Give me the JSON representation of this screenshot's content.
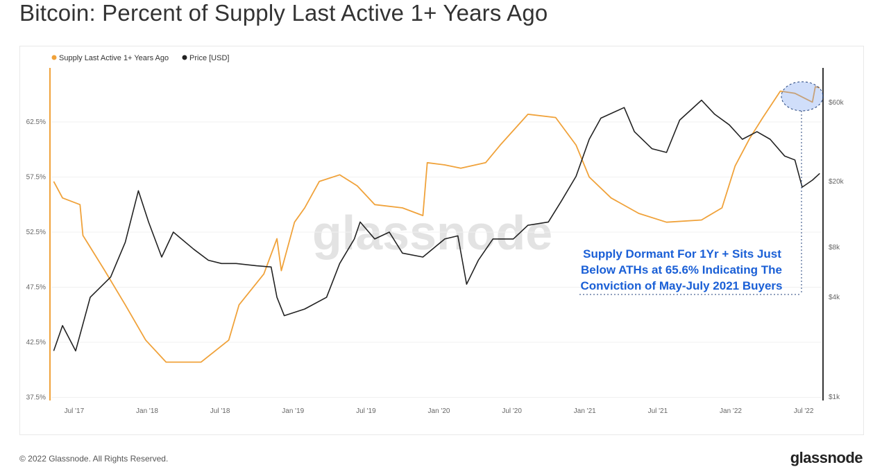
{
  "title": "Bitcoin: Percent of Supply Last Active 1+ Years Ago",
  "footer": {
    "copyright": "© 2022 Glassnode. All Rights Reserved.",
    "logo": "glassnode"
  },
  "watermark": "glassnode",
  "chart_data": {
    "type": "line",
    "title": "Bitcoin: Percent of Supply Last Active 1+ Years Ago",
    "legend_position": "top-left",
    "x_ticks": [
      {
        "t": 2017.5,
        "label": "Jul '17"
      },
      {
        "t": 2018.0,
        "label": "Jan '18"
      },
      {
        "t": 2018.5,
        "label": "Jul '18"
      },
      {
        "t": 2019.0,
        "label": "Jan '19"
      },
      {
        "t": 2019.5,
        "label": "Jul '19"
      },
      {
        "t": 2020.0,
        "label": "Jan '20"
      },
      {
        "t": 2020.5,
        "label": "Jul '20"
      },
      {
        "t": 2021.0,
        "label": "Jan '21"
      },
      {
        "t": 2021.5,
        "label": "Jul '21"
      },
      {
        "t": 2022.0,
        "label": "Jan '22"
      },
      {
        "t": 2022.5,
        "label": "Jul '22"
      }
    ],
    "xlim": [
      2017.33,
      2022.65
    ],
    "y_left": {
      "ticks": [
        {
          "v": 37.5,
          "label": "37.5%"
        },
        {
          "v": 42.5,
          "label": "42.5%"
        },
        {
          "v": 47.5,
          "label": "47.5%"
        },
        {
          "v": 52.5,
          "label": "52.5%"
        },
        {
          "v": 57.5,
          "label": "57.5%"
        },
        {
          "v": 62.5,
          "label": "62.5%"
        }
      ],
      "ylim": [
        37.5,
        67.4
      ]
    },
    "y_right": {
      "scale": "log",
      "ticks": [
        {
          "v": 1000,
          "label": "$1k"
        },
        {
          "v": 4000,
          "label": "$4k"
        },
        {
          "v": 8000,
          "label": "$8k"
        },
        {
          "v": 20000,
          "label": "$20k"
        },
        {
          "v": 60000,
          "label": "$60k"
        }
      ],
      "ylim": [
        1000,
        130000
      ]
    },
    "series": [
      {
        "name": "Supply Last Active 1+ Years Ago",
        "color": "#f0a23a",
        "axis": "left",
        "t": [
          2017.36,
          2017.42,
          2017.54,
          2017.56,
          2017.71,
          2017.85,
          2017.99,
          2018.13,
          2018.37,
          2018.56,
          2018.63,
          2018.8,
          2018.89,
          2018.92,
          2019.01,
          2019.08,
          2019.18,
          2019.32,
          2019.44,
          2019.56,
          2019.75,
          2019.89,
          2019.92,
          2020.04,
          2020.15,
          2020.32,
          2020.42,
          2020.61,
          2020.8,
          2020.94,
          2021.03,
          2021.18,
          2021.37,
          2021.56,
          2021.8,
          2021.94,
          2022.03,
          2022.13,
          2022.22,
          2022.34,
          2022.44,
          2022.56,
          2022.58,
          2022.61
        ],
        "values": [
          57.1,
          55.6,
          55.0,
          52.2,
          49.0,
          45.9,
          42.7,
          40.7,
          40.7,
          42.7,
          45.9,
          48.7,
          51.9,
          49.0,
          53.4,
          54.7,
          57.1,
          57.7,
          56.7,
          55.0,
          54.7,
          54.0,
          58.8,
          58.6,
          58.3,
          58.8,
          60.4,
          63.2,
          62.9,
          60.4,
          57.5,
          55.6,
          54.2,
          53.4,
          53.6,
          54.7,
          58.5,
          61.0,
          62.9,
          65.3,
          65.1,
          64.3,
          65.7,
          65.6
        ]
      },
      {
        "name": "Price [USD]",
        "color": "#222222",
        "axis": "right",
        "t": [
          2017.36,
          2017.42,
          2017.51,
          2017.61,
          2017.75,
          2017.85,
          2017.94,
          2018.01,
          2018.1,
          2018.18,
          2018.32,
          2018.42,
          2018.51,
          2018.61,
          2018.75,
          2018.85,
          2018.89,
          2018.94,
          2019.08,
          2019.23,
          2019.32,
          2019.42,
          2019.46,
          2019.56,
          2019.66,
          2019.75,
          2019.89,
          2020.04,
          2020.13,
          2020.19,
          2020.27,
          2020.37,
          2020.51,
          2020.61,
          2020.75,
          2020.84,
          2020.94,
          2021.03,
          2021.11,
          2021.27,
          2021.34,
          2021.46,
          2021.56,
          2021.65,
          2021.8,
          2021.89,
          2021.99,
          2022.08,
          2022.18,
          2022.27,
          2022.37,
          2022.44,
          2022.49,
          2022.56,
          2022.61
        ],
        "values": [
          1900,
          2700,
          1900,
          4000,
          5300,
          8600,
          17600,
          11400,
          7000,
          9900,
          7800,
          6700,
          6400,
          6400,
          6200,
          6100,
          4000,
          3100,
          3400,
          4000,
          6400,
          9000,
          11400,
          9000,
          9900,
          7400,
          7000,
          9000,
          9400,
          4800,
          6700,
          9000,
          9000,
          10900,
          11400,
          15300,
          21500,
          36000,
          48300,
          56000,
          40000,
          31600,
          30000,
          47000,
          62000,
          51000,
          44000,
          36000,
          40000,
          36000,
          28500,
          27000,
          18500,
          20400,
          22400
        ]
      }
    ],
    "annotations": {
      "text_lines": [
        "Supply Dormant For 1Yr + Sits Just",
        "Below ATHs at 65.6% Indicating The",
        "Conviction of May-July 2021 Buyers"
      ],
      "color": "#1a5fd6"
    }
  }
}
